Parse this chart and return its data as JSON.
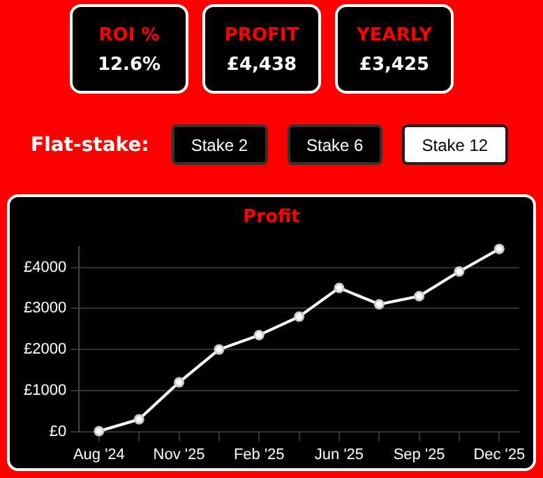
{
  "chart_data": [
    {
      "type": "other",
      "annotations": [
        "ROI %",
        "12.6%",
        "PROFIT",
        "£4,438",
        "YEARLY",
        "£3,425",
        "Flat-stake:",
        "Stake 2",
        "Stake 6",
        "Stake 12"
      ]
    },
    {
      "type": "line",
      "title": "Profit",
      "categories": [
        "Aug '24",
        null,
        "Nov '25",
        null,
        "Feb '25",
        null,
        "Jun '25",
        null,
        "Sep '25",
        null,
        "Dec '25"
      ],
      "series": [
        {
          "color": "#ffffff",
          "values": [
            10,
            300,
            1200,
            2000,
            2350,
            2800,
            3500,
            3100,
            3300,
            3900,
            4450
          ]
        }
      ],
      "ylim": [
        0,
        4500
      ],
      "yticks": [
        {
          "value": 0,
          "label": "£0"
        },
        {
          "value": 1000,
          "label": "£1000"
        },
        {
          "value": 2000,
          "label": "£2000"
        },
        {
          "value": 3000,
          "label": "£3000"
        },
        {
          "value": 4000,
          "label": "£4000"
        }
      ],
      "grid": "y",
      "legend": false,
      "marker": "circle",
      "line_style": "solid"
    }
  ]
}
